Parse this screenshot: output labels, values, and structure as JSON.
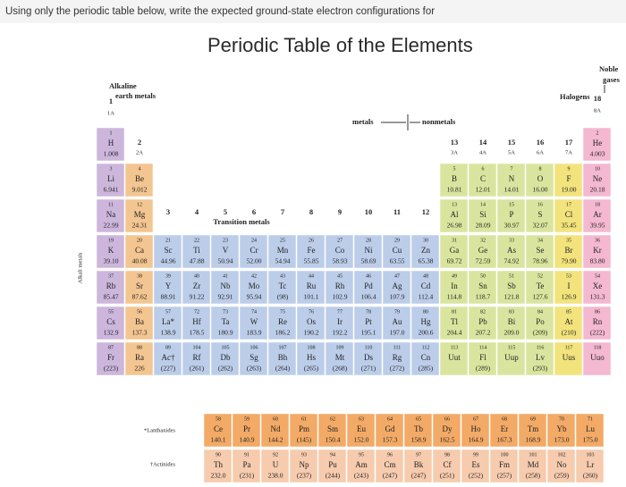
{
  "question": "Using only the periodic table below, write the expected ground-state electron configurations for",
  "title": "Periodic Table of the Elements",
  "alkaline_earth": [
    "Alkaline",
    "earth metals"
  ],
  "noble_gases": [
    "Noble",
    "gases"
  ],
  "halogens": "Halogens",
  "alkali_metals": "Alkali metals",
  "transition_metals": "Transition metals",
  "metals": "metals",
  "nonmetals": "nonmetals",
  "group_headers": [
    {
      "number": 1,
      "label": "1A"
    },
    {
      "number": 2,
      "label": "2A"
    },
    {
      "number": 13,
      "label": "3A"
    },
    {
      "number": 14,
      "label": "4A"
    },
    {
      "number": 15,
      "label": "5A"
    },
    {
      "number": 16,
      "label": "6A"
    },
    {
      "number": 17,
      "label": "7A"
    },
    {
      "number": 18,
      "label": "8A"
    }
  ],
  "transition_groups": [
    3,
    4,
    5,
    6,
    7,
    8,
    9,
    10,
    11,
    12
  ],
  "periods": [
    [
      {
        "n": 1,
        "s": "H",
        "m": "1.008"
      },
      {
        "n": 2,
        "s": "He",
        "m": "4.003"
      }
    ],
    [
      {
        "n": 3,
        "s": "Li",
        "m": "6.941"
      },
      {
        "n": 4,
        "s": "Be",
        "m": "9.012"
      },
      {
        "n": 5,
        "s": "B",
        "m": "10.81"
      },
      {
        "n": 6,
        "s": "C",
        "m": "12.01"
      },
      {
        "n": 7,
        "s": "N",
        "m": "14.01"
      },
      {
        "n": 8,
        "s": "O",
        "m": "16.00"
      },
      {
        "n": 9,
        "s": "F",
        "m": "19.00"
      },
      {
        "n": 10,
        "s": "Ne",
        "m": "20.18"
      }
    ],
    [
      {
        "n": 11,
        "s": "Na",
        "m": "22.99"
      },
      {
        "n": 12,
        "s": "Mg",
        "m": "24.31"
      },
      {
        "n": 13,
        "s": "Al",
        "m": "26.98"
      },
      {
        "n": 14,
        "s": "Si",
        "m": "28.09"
      },
      {
        "n": 15,
        "s": "P",
        "m": "30.97"
      },
      {
        "n": 16,
        "s": "S",
        "m": "32.07"
      },
      {
        "n": 17,
        "s": "Cl",
        "m": "35.45"
      },
      {
        "n": 18,
        "s": "Ar",
        "m": "39.95"
      }
    ],
    [
      {
        "n": 19,
        "s": "K",
        "m": "39.10"
      },
      {
        "n": 20,
        "s": "Ca",
        "m": "40.08"
      },
      {
        "n": 21,
        "s": "Sc",
        "m": "44.96"
      },
      {
        "n": 22,
        "s": "Ti",
        "m": "47.88"
      },
      {
        "n": 23,
        "s": "V",
        "m": "50.94"
      },
      {
        "n": 24,
        "s": "Cr",
        "m": "52.00"
      },
      {
        "n": 25,
        "s": "Mn",
        "m": "54.94"
      },
      {
        "n": 26,
        "s": "Fe",
        "m": "55.85"
      },
      {
        "n": 27,
        "s": "Co",
        "m": "58.93"
      },
      {
        "n": 28,
        "s": "Ni",
        "m": "58.69"
      },
      {
        "n": 29,
        "s": "Cu",
        "m": "63.55"
      },
      {
        "n": 30,
        "s": "Zn",
        "m": "65.38"
      },
      {
        "n": 31,
        "s": "Ga",
        "m": "69.72"
      },
      {
        "n": 32,
        "s": "Ge",
        "m": "72.59"
      },
      {
        "n": 33,
        "s": "As",
        "m": "74.92"
      },
      {
        "n": 34,
        "s": "Se",
        "m": "78.96"
      },
      {
        "n": 35,
        "s": "Br",
        "m": "79.90"
      },
      {
        "n": 36,
        "s": "Kr",
        "m": "83.80"
      }
    ],
    [
      {
        "n": 37,
        "s": "Rb",
        "m": "85.47"
      },
      {
        "n": 38,
        "s": "Sr",
        "m": "87.62"
      },
      {
        "n": 39,
        "s": "Y",
        "m": "88.91"
      },
      {
        "n": 40,
        "s": "Zr",
        "m": "91.22"
      },
      {
        "n": 41,
        "s": "Nb",
        "m": "92.91"
      },
      {
        "n": 42,
        "s": "Mo",
        "m": "95.94"
      },
      {
        "n": 43,
        "s": "Tc",
        "m": "(98)"
      },
      {
        "n": 44,
        "s": "Ru",
        "m": "101.1"
      },
      {
        "n": 45,
        "s": "Rh",
        "m": "102.9"
      },
      {
        "n": 46,
        "s": "Pd",
        "m": "106.4"
      },
      {
        "n": 47,
        "s": "Ag",
        "m": "107.9"
      },
      {
        "n": 48,
        "s": "Cd",
        "m": "112.4"
      },
      {
        "n": 49,
        "s": "In",
        "m": "114.8"
      },
      {
        "n": 50,
        "s": "Sn",
        "m": "118.7"
      },
      {
        "n": 51,
        "s": "Sb",
        "m": "121.8"
      },
      {
        "n": 52,
        "s": "Te",
        "m": "127.6"
      },
      {
        "n": 53,
        "s": "I",
        "m": "126.9"
      },
      {
        "n": 54,
        "s": "Xe",
        "m": "131.3"
      }
    ],
    [
      {
        "n": 55,
        "s": "Cs",
        "m": "132.9"
      },
      {
        "n": 56,
        "s": "Ba",
        "m": "137.3"
      },
      {
        "n": 57,
        "s": "La*",
        "m": "138.9"
      },
      {
        "n": 72,
        "s": "Hf",
        "m": "178.5"
      },
      {
        "n": 73,
        "s": "Ta",
        "m": "180.9"
      },
      {
        "n": 74,
        "s": "W",
        "m": "183.9"
      },
      {
        "n": 75,
        "s": "Re",
        "m": "186.2"
      },
      {
        "n": 76,
        "s": "Os",
        "m": "190.2"
      },
      {
        "n": 77,
        "s": "Ir",
        "m": "192.2"
      },
      {
        "n": 78,
        "s": "Pt",
        "m": "195.1"
      },
      {
        "n": 79,
        "s": "Au",
        "m": "197.0"
      },
      {
        "n": 80,
        "s": "Hg",
        "m": "200.6"
      },
      {
        "n": 81,
        "s": "Tl",
        "m": "204.4"
      },
      {
        "n": 82,
        "s": "Pb",
        "m": "207.2"
      },
      {
        "n": 83,
        "s": "Bi",
        "m": "209.0"
      },
      {
        "n": 84,
        "s": "Po",
        "m": "(209)"
      },
      {
        "n": 85,
        "s": "At",
        "m": "(210)"
      },
      {
        "n": 86,
        "s": "Rn",
        "m": "(222)"
      }
    ],
    [
      {
        "n": 87,
        "s": "Fr",
        "m": "(223)"
      },
      {
        "n": 88,
        "s": "Ra",
        "m": "226"
      },
      {
        "n": 89,
        "s": "Ac†",
        "m": "(227)"
      },
      {
        "n": 104,
        "s": "Rf",
        "m": "(261)"
      },
      {
        "n": 105,
        "s": "Db",
        "m": "(262)"
      },
      {
        "n": 106,
        "s": "Sg",
        "m": "(263)"
      },
      {
        "n": 107,
        "s": "Bh",
        "m": "(264)"
      },
      {
        "n": 108,
        "s": "Hs",
        "m": "(265)"
      },
      {
        "n": 109,
        "s": "Mt",
        "m": "(268)"
      },
      {
        "n": 110,
        "s": "Ds",
        "m": "(271)"
      },
      {
        "n": 111,
        "s": "Rg",
        "m": "(272)"
      },
      {
        "n": 112,
        "s": "Cn",
        "m": "(285)"
      },
      {
        "n": 113,
        "s": "Uut"
      },
      {
        "n": 114,
        "s": "Fl",
        "m": "(289)"
      },
      {
        "n": 115,
        "s": "Uup"
      },
      {
        "n": 116,
        "s": "Lv",
        "m": "(293)"
      },
      {
        "n": 117,
        "s": "Uus"
      },
      {
        "n": 118,
        "s": "Uuo"
      }
    ]
  ],
  "lanthanides": {
    "label": "*Lanthanides",
    "elements": [
      {
        "n": 58,
        "s": "Ce",
        "m": "140.1"
      },
      {
        "n": 59,
        "s": "Pr",
        "m": "140.9"
      },
      {
        "n": 60,
        "s": "Nd",
        "m": "144.2"
      },
      {
        "n": 61,
        "s": "Pm",
        "m": "(145)"
      },
      {
        "n": 62,
        "s": "Sm",
        "m": "150.4"
      },
      {
        "n": 63,
        "s": "Eu",
        "m": "152.0"
      },
      {
        "n": 64,
        "s": "Gd",
        "m": "157.3"
      },
      {
        "n": 65,
        "s": "Tb",
        "m": "158.9"
      },
      {
        "n": 66,
        "s": "Dy",
        "m": "162.5"
      },
      {
        "n": 67,
        "s": "Ho",
        "m": "164.9"
      },
      {
        "n": 68,
        "s": "Er",
        "m": "167.3"
      },
      {
        "n": 69,
        "s": "Tm",
        "m": "168.9"
      },
      {
        "n": 70,
        "s": "Yb",
        "m": "173.0"
      },
      {
        "n": 71,
        "s": "Lu",
        "m": "175.0"
      }
    ]
  },
  "actinides": {
    "label": "†Actinides",
    "elements": [
      {
        "n": 90,
        "s": "Th",
        "m": "232.0"
      },
      {
        "n": 91,
        "s": "Pa",
        "m": "(231)"
      },
      {
        "n": 92,
        "s": "U",
        "m": "238.0"
      },
      {
        "n": 93,
        "s": "Np",
        "m": "(237)"
      },
      {
        "n": 94,
        "s": "Pu",
        "m": "(244)"
      },
      {
        "n": 95,
        "s": "Am",
        "m": "(243)"
      },
      {
        "n": 96,
        "s": "Cm",
        "m": "(247)"
      },
      {
        "n": 97,
        "s": "Bk",
        "m": "(247)"
      },
      {
        "n": 98,
        "s": "Cf",
        "m": "(251)"
      },
      {
        "n": 99,
        "s": "Es",
        "m": "(252)"
      },
      {
        "n": 100,
        "s": "Fm",
        "m": "(257)"
      },
      {
        "n": 101,
        "s": "Md",
        "m": "(258)"
      },
      {
        "n": 102,
        "s": "No",
        "m": "(259)"
      },
      {
        "n": 103,
        "s": "Lr",
        "m": "(260)"
      }
    ]
  }
}
